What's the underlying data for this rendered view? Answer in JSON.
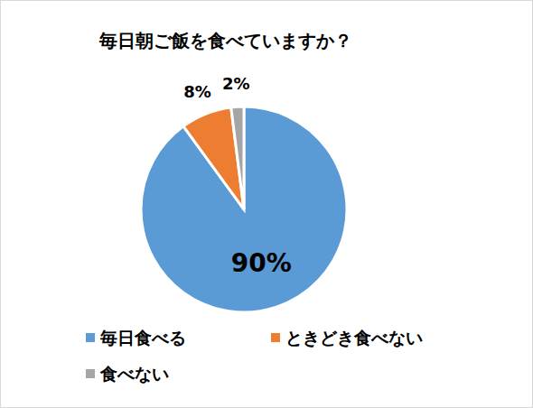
{
  "chart_data": {
    "type": "pie",
    "title": "毎日朝ご飯を食べていますか？",
    "categories": [
      "毎日食べる",
      "ときどき食べない",
      "食べない"
    ],
    "values": [
      90,
      8,
      2
    ],
    "value_labels": [
      "90%",
      "8%",
      "2%"
    ],
    "colors": [
      "#5b9bd5",
      "#ed7d31",
      "#a5a5a5"
    ],
    "data_labels": true,
    "legend": "bottom"
  }
}
